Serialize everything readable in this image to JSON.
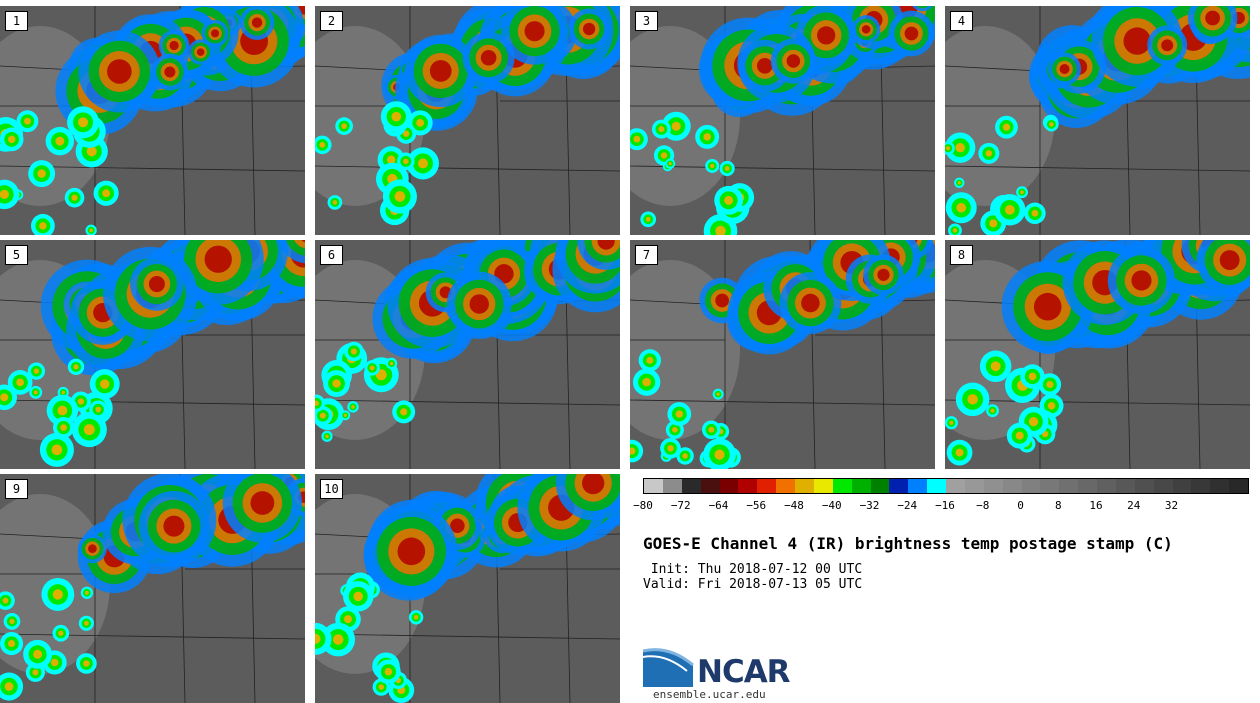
{
  "panels": [
    {
      "label": "1"
    },
    {
      "label": "2"
    },
    {
      "label": "3"
    },
    {
      "label": "4"
    },
    {
      "label": "5"
    },
    {
      "label": "6"
    },
    {
      "label": "7"
    },
    {
      "label": "8"
    },
    {
      "label": "9"
    },
    {
      "label": "10"
    }
  ],
  "colorbar": {
    "colors": [
      "#c8c8c8",
      "#8c8c8c",
      "#2a2a2a",
      "#4a1010",
      "#7a0000",
      "#b00000",
      "#e02000",
      "#f07000",
      "#e0b000",
      "#e8e800",
      "#00e800",
      "#00b000",
      "#008000",
      "#0020b0",
      "#0080ff",
      "#00ffff",
      "#a0a0a0",
      "#989898",
      "#909090",
      "#888888",
      "#808080",
      "#787878",
      "#707070",
      "#686868",
      "#606060",
      "#585858",
      "#505050",
      "#484848",
      "#404040",
      "#383838",
      "#303030",
      "#282828"
    ],
    "tick_labels": [
      "−80",
      "−72",
      "−64",
      "−56",
      "−48",
      "−40",
      "−32",
      "−24",
      "−16",
      "−8",
      "0",
      "8",
      "16",
      "24",
      "32"
    ]
  },
  "title": "GOES-E Channel 4 (IR) brightness temp postage stamp (C)",
  "init_line": " Init: Thu 2018-07-12 00 UTC",
  "valid_line": "Valid: Fri 2018-07-13 05 UTC",
  "logo": {
    "name": "NCAR",
    "url": "ensemble.ucar.edu"
  }
}
